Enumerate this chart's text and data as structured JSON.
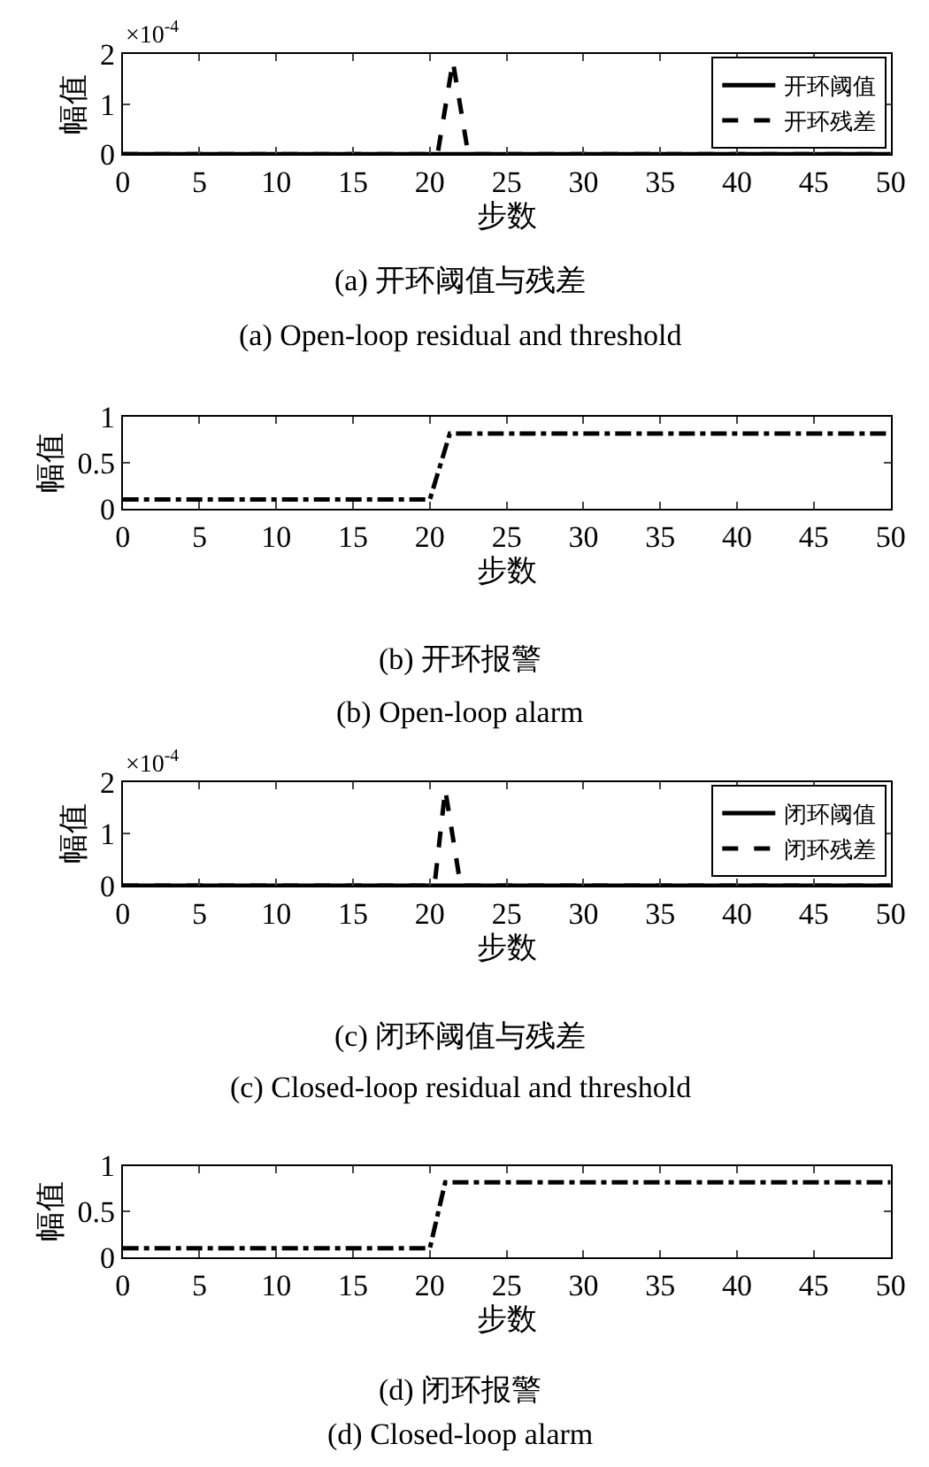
{
  "chart_data": [
    {
      "type": "line",
      "title": "(a) 开环阈值与残差",
      "subtitle": "(a) Open-loop residual and threshold",
      "xlabel": "步数",
      "ylabel": "幅值",
      "annotations": [
        "×10$^{-4}$"
      ],
      "series": [
        {
          "name": "开环阈值",
          "color": "#000000",
          "line_style": "solid",
          "x": [
            0,
            50
          ],
          "values": [
            0,
            0
          ]
        },
        {
          "name": "开环残差",
          "color": "#000000",
          "line_style": "dashed",
          "x": [
            0,
            20.5,
            21.5,
            22.5,
            50
          ],
          "values": [
            0,
            0,
            1.85,
            0,
            0
          ]
        }
      ],
      "xlim": [
        0,
        50
      ],
      "xticks": [
        0,
        5,
        10,
        15,
        20,
        25,
        30,
        35,
        40,
        45,
        50
      ],
      "ylim": [
        0,
        2
      ],
      "yticks": [
        0,
        1,
        2
      ],
      "legend": "top right",
      "marker": "none"
    },
    {
      "type": "line",
      "title": "(b) 开环报警",
      "subtitle": "(b) Open-loop alarm",
      "xlabel": "步数",
      "ylabel": "幅值",
      "series": [
        {
          "color": "#000000",
          "line_style": "dashdot",
          "x": [
            0,
            20,
            21.3,
            50
          ],
          "values": [
            0.1,
            0.1,
            0.82,
            0.82
          ]
        }
      ],
      "xlim": [
        0,
        50
      ],
      "xticks": [
        0,
        5,
        10,
        15,
        20,
        25,
        30,
        35,
        40,
        45,
        50
      ],
      "ylim": [
        0,
        1
      ],
      "yticks": [
        0,
        0.5,
        1
      ],
      "marker": "none"
    },
    {
      "type": "line",
      "title": "(c) 闭环阈值与残差",
      "subtitle": "(c) Closed-loop residual and threshold",
      "xlabel": "步数",
      "ylabel": "幅值",
      "annotations": [
        "×10$^{-4}$"
      ],
      "series": [
        {
          "name": "闭环阈值",
          "color": "#000000",
          "line_style": "solid",
          "x": [
            0,
            50
          ],
          "values": [
            0,
            0
          ]
        },
        {
          "name": "闭环残差",
          "color": "#000000",
          "line_style": "dashed",
          "x": [
            0,
            20.3,
            21,
            22,
            50
          ],
          "values": [
            0,
            0,
            1.85,
            0,
            0
          ]
        }
      ],
      "xlim": [
        0,
        50
      ],
      "xticks": [
        0,
        5,
        10,
        15,
        20,
        25,
        30,
        35,
        40,
        45,
        50
      ],
      "ylim": [
        0,
        2
      ],
      "yticks": [
        0,
        1,
        2
      ],
      "legend": "top right",
      "marker": "none"
    },
    {
      "type": "line",
      "title": "(d) 闭环报警",
      "subtitle": "(d) Closed-loop alarm",
      "xlabel": "步数",
      "ylabel": "幅值",
      "series": [
        {
          "color": "#000000",
          "line_style": "dashdot",
          "x": [
            0,
            20,
            21,
            50
          ],
          "values": [
            0.1,
            0.1,
            0.82,
            0.82
          ]
        }
      ],
      "xlim": [
        0,
        50
      ],
      "xticks": [
        0,
        5,
        10,
        15,
        20,
        25,
        30,
        35,
        40,
        45,
        50
      ],
      "ylim": [
        0,
        1
      ],
      "yticks": [
        0,
        0.5,
        1
      ],
      "marker": "none"
    }
  ]
}
